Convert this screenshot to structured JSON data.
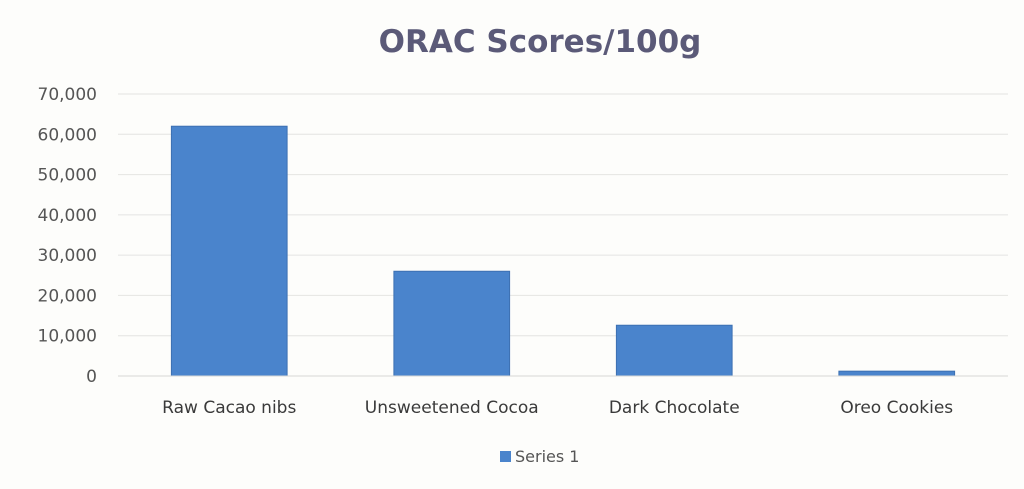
{
  "chart_data": {
    "type": "bar",
    "title": "ORAC Scores/100g",
    "xlabel": "",
    "ylabel": "",
    "categories": [
      "Raw Cacao nibs",
      "Unsweetened Cocoa",
      "Dark Chocolate",
      "Oreo Cookies"
    ],
    "series": [
      {
        "name": "Series 1",
        "values": [
          62000,
          26000,
          12600,
          1200
        ]
      }
    ],
    "ylim": [
      0,
      70000
    ],
    "y_ticks": [
      0,
      10000,
      20000,
      30000,
      40000,
      50000,
      60000,
      70000
    ],
    "y_tick_labels": [
      "0",
      "10,000",
      "20,000",
      "30,000",
      "40,000",
      "50,000",
      "60,000",
      "70,000"
    ],
    "grid": true,
    "legend_position": "bottom"
  },
  "colors": {
    "bar": "#4a84cc",
    "bar_edge": "#3c70b2",
    "title": "#5b5a78",
    "grid": "#e4e4e2"
  }
}
